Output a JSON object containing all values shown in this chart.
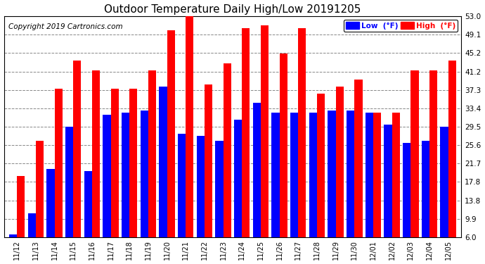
{
  "title": "Outdoor Temperature Daily High/Low 20191205",
  "copyright": "Copyright 2019 Cartronics.com",
  "legend_low": "Low  (°F)",
  "legend_high": "High  (°F)",
  "dates": [
    "11/12",
    "11/13",
    "11/14",
    "11/15",
    "11/16",
    "11/17",
    "11/18",
    "11/19",
    "11/20",
    "11/21",
    "11/22",
    "11/23",
    "11/24",
    "11/25",
    "11/26",
    "11/27",
    "11/28",
    "11/29",
    "11/30",
    "12/01",
    "12/02",
    "12/03",
    "12/04",
    "12/05"
  ],
  "low": [
    6.5,
    11.0,
    20.5,
    29.5,
    20.0,
    32.0,
    32.5,
    33.0,
    38.0,
    28.0,
    27.5,
    26.5,
    31.0,
    34.5,
    32.5,
    32.5,
    32.5,
    33.0,
    33.0,
    32.5,
    30.0,
    26.0,
    26.5,
    29.5
  ],
  "high": [
    19.0,
    26.5,
    37.5,
    43.5,
    41.5,
    37.5,
    37.5,
    41.5,
    50.0,
    53.5,
    38.5,
    43.0,
    50.5,
    51.0,
    45.0,
    50.5,
    36.5,
    38.0,
    39.5,
    32.5,
    32.5,
    41.5,
    41.5,
    43.5
  ],
  "ylim_min": 6.0,
  "ylim_max": 53.0,
  "yticks": [
    6.0,
    9.9,
    13.8,
    17.8,
    21.7,
    25.6,
    29.5,
    33.4,
    37.3,
    41.2,
    45.2,
    49.1,
    53.0
  ],
  "color_low": "#0000ff",
  "color_high": "#ff0000",
  "background_color": "#ffffff",
  "plot_background": "#ffffff",
  "grid_color": "#888888",
  "title_fontsize": 11,
  "copyright_fontsize": 7.5,
  "bar_width": 0.42
}
